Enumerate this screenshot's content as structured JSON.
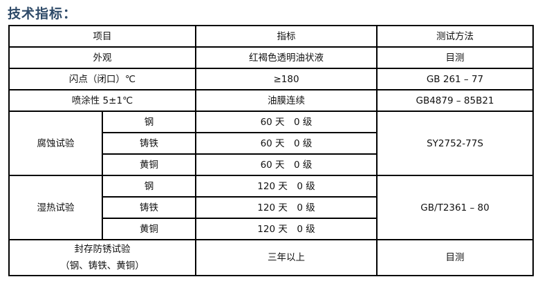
{
  "title": "技术指标：",
  "table": {
    "headers": [
      "项目",
      "指标",
      "测试方法"
    ],
    "rows": {
      "appearance": {
        "item": "外观",
        "value": "红褐色透明油状液",
        "method": "目测"
      },
      "flash_point": {
        "item": "闪点（闭口）℃",
        "value": "≥180",
        "method": "GB 261 – 77"
      },
      "spray": {
        "item": "喷涂性 5±1℃",
        "value": "油膜连续",
        "method": "GB4879 – 85B21"
      },
      "corrosion": {
        "item": "腐蚀试验",
        "method": "SY2752-77S",
        "subrows": [
          {
            "metal": "钢",
            "value": "60 天　0 级"
          },
          {
            "metal": "铸铁",
            "value": "60 天　0 级"
          },
          {
            "metal": "黄铜",
            "value": "60 天　0 级"
          }
        ]
      },
      "humidity": {
        "item": "湿热试验",
        "method": "GB/T2361 – 80",
        "subrows": [
          {
            "metal": "钢",
            "value": "120 天　0 级"
          },
          {
            "metal": "铸铁",
            "value": "120 天　0 级"
          },
          {
            "metal": "黄铜",
            "value": "120 天　0 级"
          }
        ]
      },
      "storage": {
        "item_line1": "封存防锈试验",
        "item_line2": "（钢、铸铁、黄铜）",
        "value": "三年以上",
        "method": "目测"
      }
    }
  }
}
